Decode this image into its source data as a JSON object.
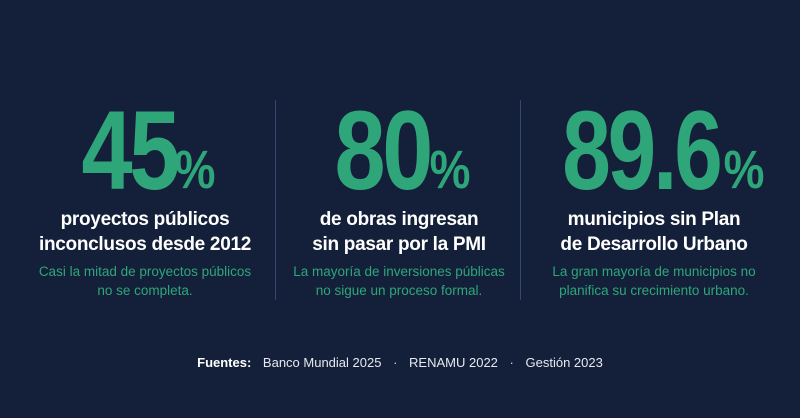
{
  "stats": [
    {
      "number": "45",
      "percent": "%",
      "headline_line1": "proyectos públicos",
      "headline_line2": "inconclusos desde 2012",
      "desc_line1": "Casi la mitad de proyectos públicos",
      "desc_line2": "no se completa."
    },
    {
      "number": "80",
      "percent": "%",
      "headline_line1": "de obras ingresan",
      "headline_line2": "sin pasar por la PMI",
      "desc_line1": "La mayoría de inversiones públicas",
      "desc_line2": "no sigue un proceso formal."
    },
    {
      "number": "89.6",
      "percent": "%",
      "headline_line1": "municipios sin Plan",
      "headline_line2": "de Desarrollo Urbano",
      "desc_line1": "La gran mayoría de municipios no",
      "desc_line2": "planifica su crecimiento urbano."
    }
  ],
  "sources": {
    "label": "Fuentes:",
    "items": [
      "Banco Mundial 2025",
      "RENAMU 2022",
      "Gestión 2023"
    ],
    "separator": "·"
  },
  "colors": {
    "background": "#142039",
    "accent": "#2ea67a",
    "text": "#ffffff",
    "divider": "#33476f"
  }
}
